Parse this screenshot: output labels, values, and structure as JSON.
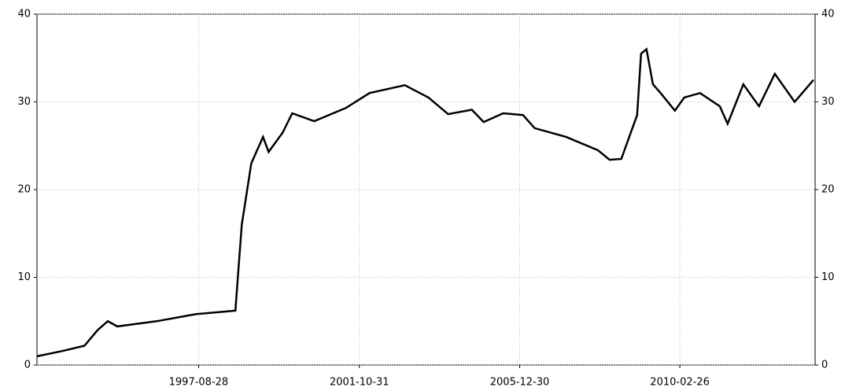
{
  "chart_data": {
    "type": "line",
    "color": "#000000",
    "grid": true,
    "x": [
      "1993-06-17",
      "1994-02-12",
      "1994-09-10",
      "1995-01-14",
      "1995-04-20",
      "1995-07-19",
      "1996-07-27",
      "1997-08-05",
      "1998-08-12",
      "1998-09-04",
      "1998-10-12",
      "1999-01-10",
      "1999-05-01",
      "1999-06-23",
      "1999-11-04",
      "2000-02-02",
      "2000-08-29",
      "2001-06-24",
      "2002-02-04",
      "2003-01-05",
      "2003-08-17",
      "2004-02-20",
      "2004-10-02",
      "2005-01-22",
      "2005-07-27",
      "2006-01-30",
      "2006-05-21",
      "2007-03-16",
      "2008-01-09",
      "2008-05-01",
      "2008-08-20",
      "2009-01-17",
      "2009-02-23",
      "2009-04-16",
      "2009-06-16",
      "2009-08-28",
      "2010-01-10",
      "2010-04-09",
      "2010-09-06",
      "2011-03-12",
      "2011-05-25",
      "2011-10-21",
      "2012-03-18",
      "2012-08-15",
      "2013-02-19",
      "2013-08-17"
    ],
    "values": [
      1.0,
      1.6,
      2.2,
      4.0,
      5.0,
      4.4,
      5.0,
      5.8,
      6.2,
      10,
      16,
      23,
      26,
      24.3,
      26.5,
      28.7,
      27.8,
      29.3,
      31,
      31.9,
      30.5,
      28.6,
      29.1,
      27.7,
      28.7,
      28.5,
      27,
      26,
      24.5,
      23.4,
      23.5,
      28.5,
      35.5,
      36,
      32,
      31,
      29,
      30.5,
      31,
      29.5,
      27.5,
      32,
      29.5,
      33.2,
      30,
      32.5
    ],
    "xlim": [
      "1993-06-17",
      "2013-09-01"
    ],
    "xticks": [
      "1997-08-28",
      "2001-10-31",
      "2005-12-30",
      "2010-02-26"
    ],
    "ylim": [
      0,
      40
    ],
    "yticks": [
      0,
      10,
      20,
      30,
      40
    ],
    "y2lim": [
      0,
      40
    ],
    "y2ticks": [
      0,
      10,
      20,
      30,
      40
    ]
  }
}
